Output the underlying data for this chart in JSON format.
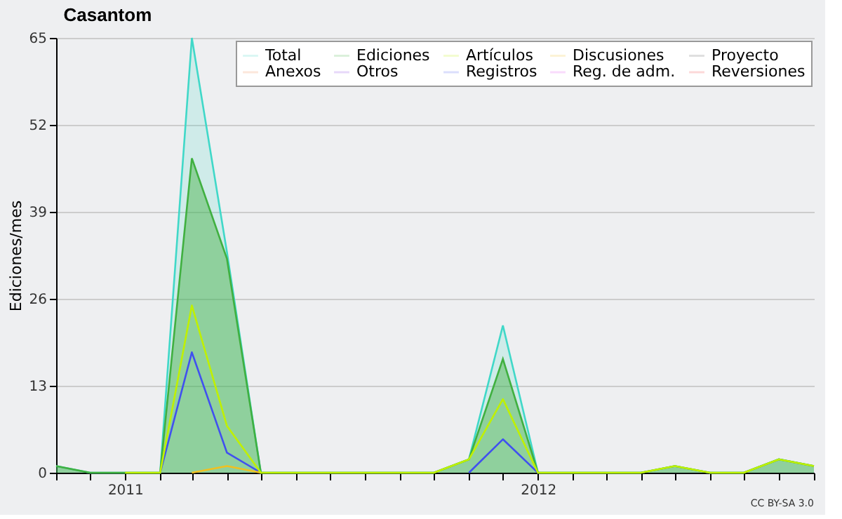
{
  "chart_data": {
    "type": "line",
    "title": "Casantom",
    "ylabel": "Ediciones/mes",
    "x": [
      "2010-11",
      "2010-12",
      "2011-01",
      "2011-02",
      "2011-03",
      "2011-04",
      "2011-05",
      "2011-06",
      "2011-07",
      "2011-08",
      "2011-09",
      "2011-10",
      "2011-11",
      "2011-12",
      "2012-01",
      "2012-02",
      "2012-03",
      "2012-04",
      "2012-05",
      "2012-06",
      "2012-07",
      "2012-08",
      "2012-09"
    ],
    "series": [
      {
        "name": "Total",
        "type": "area",
        "color": "#40d8c8",
        "values": [
          1,
          0,
          0,
          0,
          65,
          33,
          0,
          0,
          0,
          0,
          0,
          0,
          2,
          22,
          0,
          0,
          0,
          0,
          1,
          0,
          0,
          2,
          1
        ]
      },
      {
        "name": "Ediciones",
        "type": "area",
        "color": "#40b040",
        "values": [
          1,
          0,
          0,
          0,
          47,
          32,
          0,
          0,
          0,
          0,
          0,
          0,
          2,
          17,
          0,
          0,
          0,
          0,
          1,
          0,
          0,
          2,
          1
        ]
      },
      {
        "name": "Artículos",
        "color": "#c0f000",
        "values": [
          null,
          null,
          0,
          0,
          25,
          7,
          0,
          0,
          0,
          0,
          0,
          0,
          2,
          11,
          0,
          0,
          0,
          0,
          1,
          0,
          0,
          2,
          1
        ]
      },
      {
        "name": "Discusiones",
        "color": "#f0c020",
        "values": [
          null,
          null,
          null,
          null,
          0,
          1,
          0,
          null,
          null,
          null,
          null,
          null,
          null,
          null,
          null,
          null,
          null,
          null,
          null,
          null,
          null,
          null,
          null
        ]
      },
      {
        "name": "Proyecto",
        "color": "#555555",
        "values": [
          null,
          null,
          null,
          null,
          null,
          null,
          null,
          null,
          null,
          null,
          null,
          null,
          null,
          null,
          null,
          null,
          null,
          null,
          null,
          null,
          null,
          null,
          null
        ]
      },
      {
        "name": "Anexos",
        "color": "#f08040",
        "values": [
          null,
          null,
          null,
          null,
          null,
          null,
          null,
          null,
          null,
          null,
          null,
          null,
          null,
          null,
          null,
          null,
          null,
          null,
          null,
          null,
          null,
          null,
          null
        ]
      },
      {
        "name": "Otros",
        "color": "#8030e0",
        "values": [
          null,
          null,
          null,
          null,
          null,
          null,
          null,
          null,
          null,
          null,
          null,
          null,
          null,
          null,
          null,
          null,
          null,
          null,
          null,
          null,
          null,
          null,
          null
        ]
      },
      {
        "name": "Registros",
        "color": "#4050f0",
        "values": [
          null,
          null,
          null,
          0,
          18,
          3,
          0,
          null,
          null,
          null,
          null,
          null,
          0,
          5,
          0,
          null,
          null,
          null,
          null,
          null,
          null,
          null,
          null
        ]
      },
      {
        "name": "Reg. de adm.",
        "color": "#e040f0",
        "values": [
          null,
          null,
          null,
          null,
          null,
          null,
          null,
          null,
          null,
          null,
          null,
          null,
          null,
          null,
          null,
          null,
          null,
          null,
          null,
          null,
          null,
          null,
          null
        ]
      },
      {
        "name": "Reversiones",
        "color": "#f03030",
        "values": [
          null,
          null,
          null,
          null,
          null,
          null,
          null,
          null,
          null,
          null,
          null,
          null,
          null,
          null,
          null,
          null,
          null,
          null,
          null,
          null,
          null,
          null,
          null
        ]
      }
    ],
    "xlim": [
      "2010-11",
      "2012-09"
    ],
    "xticks": [
      {
        "value": "2010-11",
        "label": null
      },
      {
        "value": "2010-12",
        "label": null
      },
      {
        "value": "2011-01",
        "label": "2011"
      },
      {
        "value": "2011-02",
        "label": null
      },
      {
        "value": "2011-03",
        "label": null
      },
      {
        "value": "2011-04",
        "label": null
      },
      {
        "value": "2011-05",
        "label": null
      },
      {
        "value": "2011-06",
        "label": null
      },
      {
        "value": "2011-07",
        "label": null
      },
      {
        "value": "2011-08",
        "label": null
      },
      {
        "value": "2011-09",
        "label": null
      },
      {
        "value": "2011-10",
        "label": null
      },
      {
        "value": "2011-11",
        "label": null
      },
      {
        "value": "2011-12",
        "label": null
      },
      {
        "value": "2012-01",
        "label": "2012"
      },
      {
        "value": "2012-02",
        "label": null
      },
      {
        "value": "2012-03",
        "label": null
      },
      {
        "value": "2012-04",
        "label": null
      },
      {
        "value": "2012-05",
        "label": null
      },
      {
        "value": "2012-06",
        "label": null
      },
      {
        "value": "2012-07",
        "label": null
      },
      {
        "value": "2012-08",
        "label": null
      },
      {
        "value": "2012-09",
        "label": null
      }
    ],
    "ylim": [
      0,
      65
    ],
    "yticks": [
      0,
      13,
      26,
      39,
      52,
      65
    ],
    "grid": "y",
    "legend": "top right",
    "marker": "none",
    "line_style": "solid",
    "annotations": [
      "CC BY-SA 3.0"
    ]
  }
}
